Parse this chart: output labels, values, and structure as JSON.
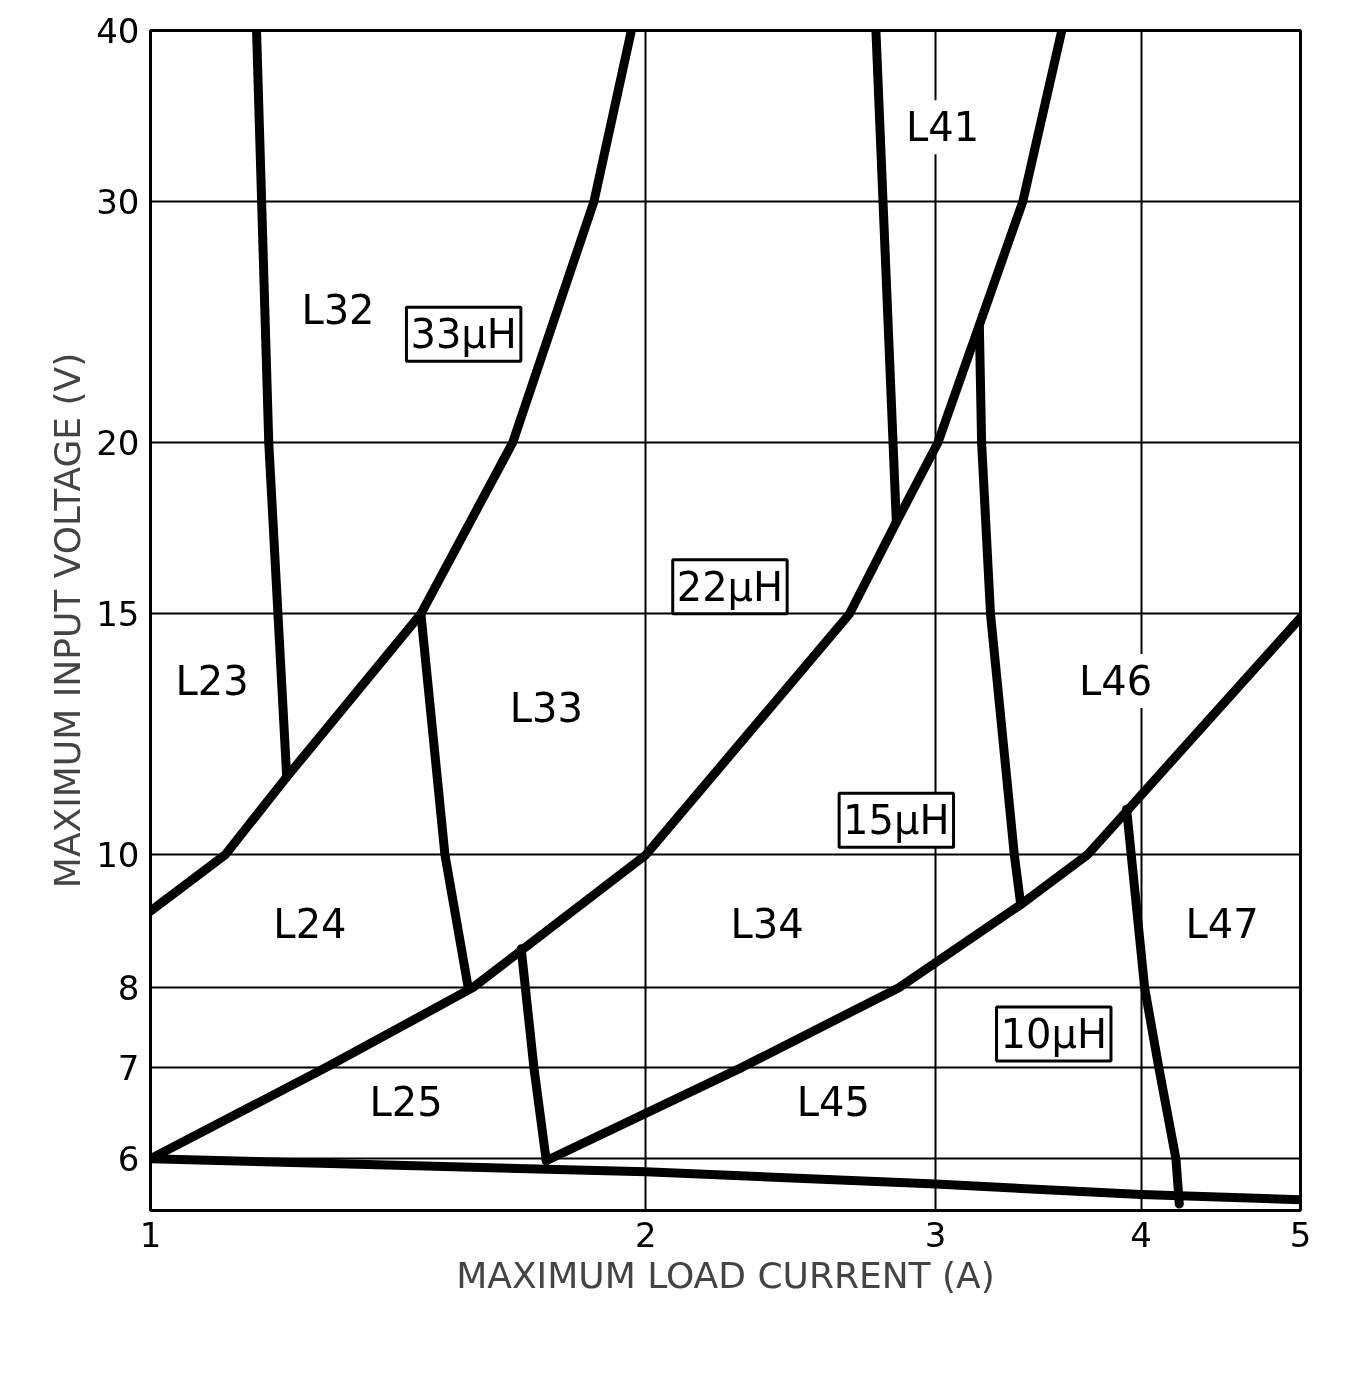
{
  "chart_data": {
    "type": "line",
    "xlabel": "MAXIMUM LOAD CURRENT (A)",
    "ylabel": "MAXIMUM INPUT VOLTAGE (V)",
    "log": "xy",
    "grid": true,
    "marker": "none",
    "line_style": "solid",
    "xlim": [
      1,
      5
    ],
    "ylim": [
      5.5,
      40
    ],
    "xticks": [
      1,
      2,
      3,
      4,
      5
    ],
    "yticks": [
      6,
      7,
      8,
      10,
      15,
      20,
      30,
      40
    ],
    "series": [
      {
        "color": "#000000",
        "x": [
          1,
          1.11,
          1.21,
          1.46,
          1.66,
          1.86,
          1.96
        ],
        "values": [
          9.1,
          10,
          11.4,
          15,
          20,
          30,
          40
        ]
      },
      {
        "color": "#000000",
        "x": [
          1,
          1.28,
          1.57,
          2,
          2.66,
          2.84,
          3.01,
          3.39,
          3.58
        ],
        "values": [
          6,
          7,
          8,
          10,
          15,
          17.5,
          20,
          30,
          40
        ]
      },
      {
        "color": "#000000",
        "x": [
          1.74,
          2.29,
          2.85,
          3.38,
          3.71,
          3.93,
          5
        ],
        "values": [
          5.98,
          7,
          8,
          9.2,
          10,
          10.8,
          14.9
        ]
      },
      {
        "color": "#000000",
        "x": [
          1,
          2,
          3,
          4,
          5
        ],
        "values": [
          6,
          5.87,
          5.75,
          5.65,
          5.6
        ]
      },
      {
        "color": "#000000",
        "x": [
          1.16,
          1.18,
          1.21
        ],
        "values": [
          40,
          20,
          11.4
        ]
      },
      {
        "color": "#000000",
        "x": [
          1.46,
          1.51,
          1.56
        ],
        "values": [
          15,
          10,
          8
        ]
      },
      {
        "color": "#000000",
        "x": [
          1.68,
          1.71,
          1.74
        ],
        "values": [
          8.54,
          7,
          5.98
        ]
      },
      {
        "color": "#000000",
        "x": [
          2.76,
          2.84
        ],
        "values": [
          40,
          17.5
        ]
      },
      {
        "color": "#000000",
        "x": [
          3.19,
          3.2,
          3.24,
          3.35,
          3.38
        ],
        "values": [
          24.3,
          20,
          15,
          10,
          9.2
        ]
      },
      {
        "color": "#000000",
        "x": [
          3.92,
          4.02,
          4.1,
          4.2,
          4.22
        ],
        "values": [
          10.8,
          8,
          7,
          6,
          5.56
        ]
      }
    ],
    "annotations": [
      "L32",
      "L23",
      "L24",
      "L33",
      "L25",
      "L34",
      "L45",
      "L41",
      "L46",
      "L47",
      "33µH",
      "22µH",
      "15µH",
      "10µH"
    ]
  }
}
